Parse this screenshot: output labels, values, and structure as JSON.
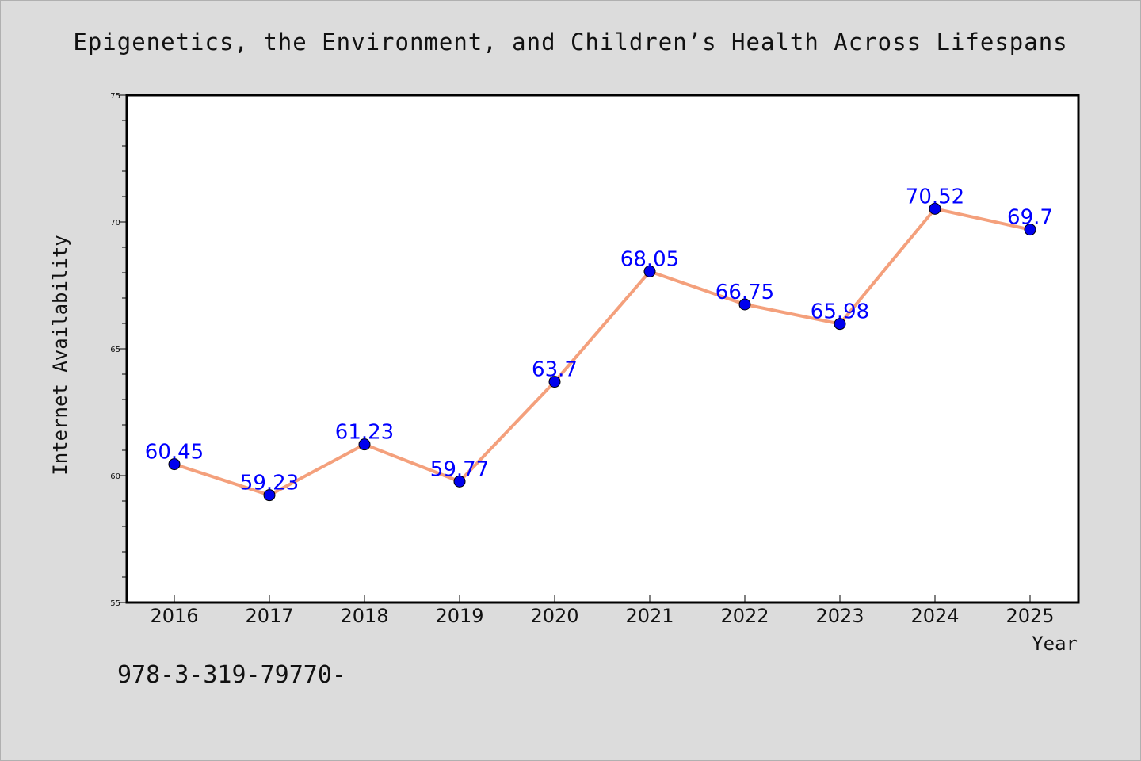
{
  "chart_data": {
    "type": "line",
    "title": "Epigenetics, the Environment, and Children’s Health Across Lifespans",
    "xlabel": "Year",
    "ylabel": "Internet Availability",
    "categories": [
      "2016",
      "2017",
      "2018",
      "2019",
      "2020",
      "2021",
      "2022",
      "2023",
      "2024",
      "2025"
    ],
    "series": [
      {
        "values": [
          60.45,
          59.23,
          61.23,
          59.77,
          63.7,
          68.05,
          66.75,
          65.98,
          70.52,
          69.7
        ],
        "data_labels": [
          "60.45",
          "59.23",
          "61.23",
          "59.77",
          "63.7",
          "68.05",
          "66.75",
          "65.98",
          "70.52",
          "69.7"
        ]
      }
    ],
    "ylim": [
      55,
      75
    ],
    "yticks": [
      "55",
      "60",
      "65",
      "70",
      "75"
    ],
    "grid": false,
    "colors": {
      "line": "#f4a07c",
      "marker": "#0000ee",
      "data_label": "#0000ff",
      "plot_background": "#ffffff",
      "page_background": "#dcdcdc"
    }
  },
  "footer_text": "978-3-319-79770-"
}
